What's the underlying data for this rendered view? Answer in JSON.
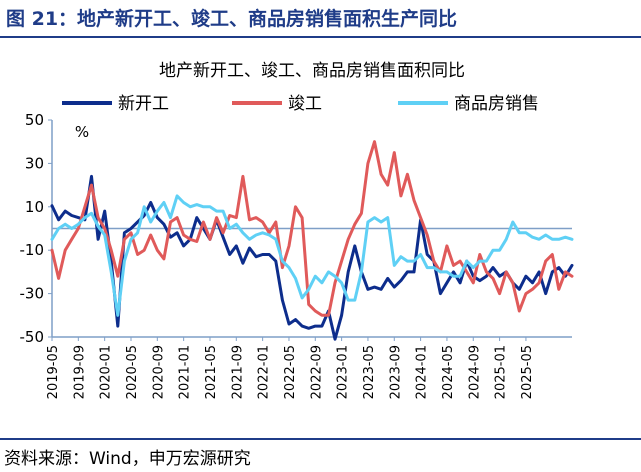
{
  "figure_title": "图 21：地产新开工、竣工、商品房销售面积生产同比",
  "source": "资料来源：Wind，申万宏源研究",
  "chart_data": {
    "type": "line",
    "title": "地产新开工、竣工、商品房销售面积同比",
    "ylabel": "%",
    "ylim": [
      -50,
      50
    ],
    "yticks": [
      50,
      30,
      10,
      -10,
      -30,
      -50
    ],
    "xtick_labels": [
      "2019-05",
      "2019-09",
      "2020-01",
      "2020-05",
      "2020-09",
      "2021-01",
      "2021-05",
      "2021-09",
      "2022-01",
      "2022-05",
      "2022-09",
      "2023-01",
      "2023-05",
      "2023-09",
      "2024-01",
      "2024-05",
      "2024-09",
      "2025-01",
      "2025-05"
    ],
    "legend_position": "top",
    "grid": false,
    "reference_line": 0,
    "colors": {
      "新开工": "#0d2d8c",
      "竣工": "#e05a5a",
      "商品房销售": "#5fd0f5",
      "axis": "#7f9fc7"
    },
    "series": [
      {
        "name": "新开工",
        "color": "#0d2d8c",
        "values": [
          10.5,
          4,
          8,
          6,
          5,
          4,
          24,
          -5,
          8,
          -15,
          -45,
          -2,
          0,
          3,
          6,
          12,
          5,
          2,
          -4,
          -2,
          -8,
          -5,
          5,
          0,
          -5,
          4,
          -4,
          -12,
          -8,
          -16,
          -9,
          -13,
          -12,
          -12,
          -15,
          -33,
          -44,
          -42,
          -45,
          -46,
          -45,
          -45,
          -38,
          -51,
          -40,
          -20,
          -8,
          -20,
          -28,
          -27,
          -28,
          -23,
          -27,
          -24,
          -20,
          -20,
          4,
          -12,
          -15,
          -30,
          -25,
          -20,
          -25,
          -15,
          -22,
          -24,
          -22,
          -18,
          -22,
          -20,
          -25,
          -28,
          -22,
          -25,
          -20,
          -30,
          -20,
          -18,
          -22,
          -17
        ]
      },
      {
        "name": "竣工",
        "color": "#e05a5a",
        "values": [
          -10,
          -23,
          -10,
          -5,
          0,
          10,
          20,
          5,
          0,
          -10,
          -22,
          -5,
          -2,
          -12,
          -10,
          -3,
          -10,
          -14,
          3,
          5,
          -3,
          -5,
          -6,
          3,
          -5,
          5,
          -2,
          6,
          5,
          24,
          4,
          5,
          3,
          -2,
          3,
          -18,
          -8,
          10,
          5,
          -35,
          -38,
          -40,
          -40,
          -25,
          -15,
          -5,
          2,
          7,
          30,
          40,
          25,
          20,
          35,
          15,
          25,
          13,
          5,
          -3,
          -15,
          -20,
          -8,
          -17,
          -15,
          -20,
          -25,
          -12,
          -20,
          -23,
          -30,
          -20,
          -25,
          -38,
          -30,
          -28,
          -25,
          -15,
          -12,
          -28,
          -20,
          -22
        ]
      },
      {
        "name": "商品房销售",
        "color": "#5fd0f5",
        "values": [
          -5,
          0,
          2,
          0,
          2,
          5,
          7,
          1,
          -3,
          -20,
          -40,
          -15,
          -5,
          -2,
          10,
          3,
          8,
          12,
          5,
          15,
          12,
          10,
          11,
          10,
          10,
          8,
          8,
          0,
          2,
          -2,
          -5,
          -3,
          -2,
          -3,
          -5,
          -15,
          -18,
          -23,
          -32,
          -28,
          -22,
          -25,
          -20,
          -22,
          -25,
          -33,
          -33,
          -20,
          3,
          5,
          3,
          5,
          -17,
          -13,
          -15,
          -15,
          -12,
          -18,
          -18,
          -20,
          -20,
          -22,
          -22,
          -15,
          -18,
          -15,
          -15,
          -10,
          -10,
          -5,
          3,
          -2,
          -2,
          -4,
          -5,
          -3,
          -5,
          -5,
          -4,
          -5
        ]
      }
    ]
  }
}
